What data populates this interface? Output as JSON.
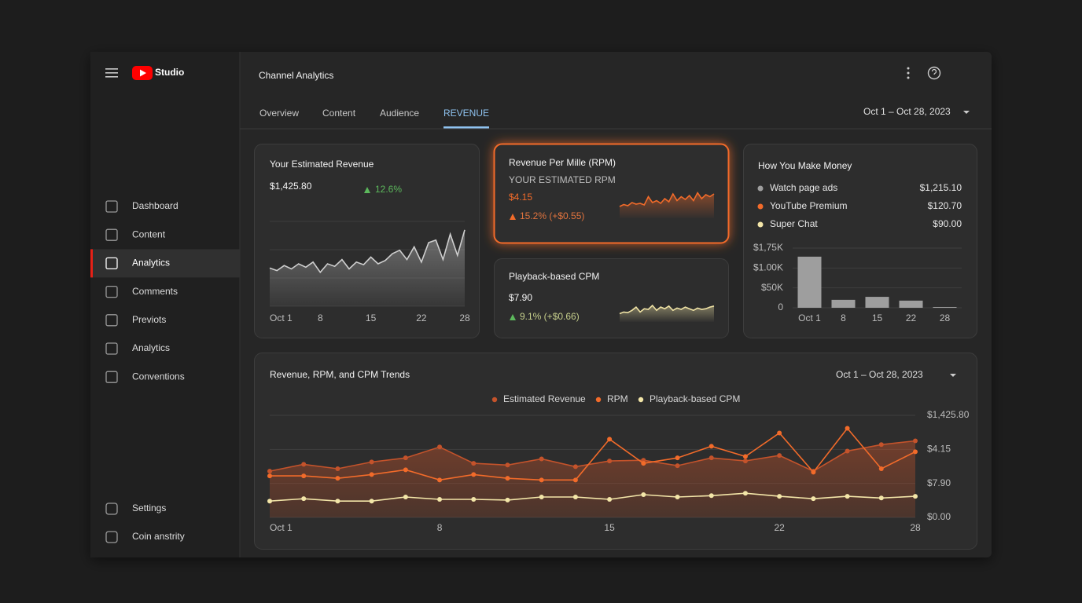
{
  "sidebar": {
    "brand": "Studio",
    "nav": [
      "Dashboard",
      "Content",
      "Analytics",
      "Comments",
      "Previots",
      "Analytics",
      "Conventions"
    ],
    "active": 2,
    "footer": [
      "Settings",
      "Coin anstrity"
    ]
  },
  "header": {
    "title": "Channel Analytics",
    "tabs": [
      "Overview",
      "Content",
      "Audience",
      "REVENUE"
    ],
    "active_tab": 3,
    "date_range": "Oct 1 – Oct 28, 2023"
  },
  "chart_data": [
    {
      "type": "area",
      "title": "Your Estimated Revenue",
      "headline": "$1,425.80",
      "change": "12.6%",
      "color": "#a8a8a8",
      "x": [
        1,
        2,
        3,
        4,
        5,
        6,
        7,
        8,
        9,
        10,
        11,
        12,
        13,
        14,
        15,
        16,
        17,
        18,
        19,
        20,
        21,
        22,
        23,
        24,
        25,
        26,
        27,
        28
      ],
      "values": [
        45,
        42,
        48,
        44,
        50,
        46,
        52,
        40,
        50,
        47,
        55,
        44,
        52,
        49,
        58,
        50,
        54,
        62,
        66,
        55,
        70,
        52,
        75,
        78,
        55,
        85,
        60,
        90
      ],
      "xlim": [
        1,
        28
      ],
      "ylim": [
        0,
        100
      ],
      "xticks": [
        {
          "value": 1,
          "label": "Oct 1"
        },
        8,
        15,
        22,
        28
      ]
    },
    {
      "type": "sparkline",
      "title": "Revenue Per Mille (RPM)",
      "subtitle": "YOUR ESTIMATED RPM",
      "headline": "$4.15",
      "change": "15.2% (+$0.55)",
      "color": "#f26b2a",
      "values": [
        30,
        35,
        32,
        40,
        36,
        38,
        34,
        55,
        40,
        45,
        38,
        50,
        42,
        62,
        45,
        55,
        48,
        58,
        45,
        65,
        50,
        60,
        55,
        62
      ],
      "ylim": [
        0,
        100
      ]
    },
    {
      "type": "sparkline",
      "title": "Playback-based CPM",
      "headline": "$7.90",
      "change": "9.1% (+$0.66)",
      "color": "#efe2a4",
      "values": [
        25,
        30,
        28,
        35,
        45,
        30,
        40,
        38,
        50,
        35,
        45,
        40,
        48,
        35,
        42,
        38,
        45,
        40,
        35,
        42,
        38,
        40,
        45,
        48
      ],
      "ylim": [
        0,
        100
      ]
    },
    {
      "type": "bar",
      "title": "How You Make Money",
      "breakdown": {
        "names": [
          "Watch page ads",
          "YouTube Premium",
          "Super Chat"
        ],
        "colors": [
          "#9e9e9e",
          "#f26b2a",
          "#f3e6a8"
        ],
        "values": [
          1215.1,
          120.7,
          90
        ],
        "value_labels": [
          "$1,215.10",
          "$120.70",
          "$90.00"
        ]
      },
      "categories": [
        "Oct 1",
        "8",
        "15",
        "22",
        "28"
      ],
      "values": [
        2.57,
        0.4,
        0.55,
        0.36,
        0.04
      ],
      "color": "#9e9e9e",
      "ylim": [
        0,
        3
      ],
      "axis_labels": [
        "0",
        "$50K",
        "$1.00K",
        "$1,75K"
      ]
    },
    {
      "type": "line",
      "title": "Revenue, RPM, and CPM Trends",
      "date_range": "Oct 1 – Oct 28, 2023",
      "categories": [
        "Oct 1",
        null,
        null,
        null,
        null,
        "8",
        null,
        null,
        null,
        null,
        "15",
        null,
        null,
        null,
        null,
        "22",
        null,
        null,
        null,
        "28"
      ],
      "series": [
        {
          "name": "Estimated Revenue",
          "color": "#c4532b",
          "area": true,
          "values": [
            1.36,
            1.56,
            1.43,
            1.63,
            1.75,
            2.07,
            1.59,
            1.54,
            1.72,
            1.49,
            1.66,
            1.68,
            1.52,
            1.75,
            1.66,
            1.82,
            1.36,
            1.95,
            2.14,
            2.25
          ]
        },
        {
          "name": "RPM",
          "color": "#f26b2a",
          "area": false,
          "values": [
            1.22,
            1.22,
            1.15,
            1.26,
            1.4,
            1.1,
            1.26,
            1.15,
            1.1,
            1.1,
            2.3,
            1.59,
            1.75,
            2.09,
            1.79,
            2.48,
            1.33,
            2.62,
            1.43,
            1.93
          ]
        },
        {
          "name": "Playback-based CPM",
          "color": "#f3e6a8",
          "area": false,
          "values": [
            0.48,
            0.55,
            0.48,
            0.48,
            0.6,
            0.53,
            0.53,
            0.51,
            0.6,
            0.6,
            0.53,
            0.67,
            0.6,
            0.64,
            0.71,
            0.62,
            0.55,
            0.62,
            0.57,
            0.62
          ]
        }
      ],
      "ylim": [
        0,
        3
      ],
      "axis_labels": [
        "$0.00",
        "$7.90",
        "$4.15",
        "$1,425.80"
      ]
    }
  ]
}
